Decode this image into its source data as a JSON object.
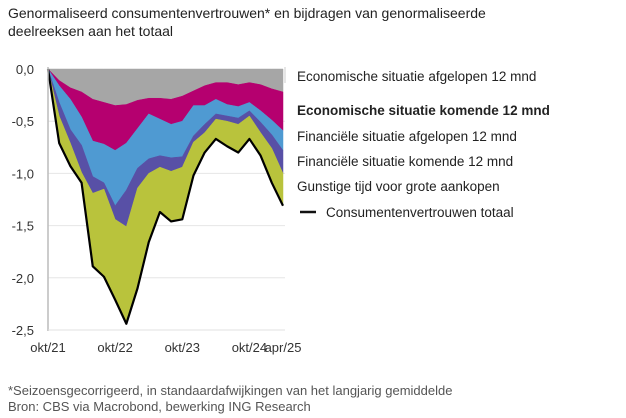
{
  "title": "Genormaliseerd consumentenvertrouwen* en bijdragen van genormaliseerde deelreeksen aan het totaal",
  "footnote": "*Seizoensgecorrigeerd, in standaardafwijkingen van het langjarig gemiddelde",
  "source": "Bron: CBS via Macrobond, bewerking ING Research",
  "chart_data": {
    "type": "area",
    "stacked": true,
    "title": "Genormaliseerd consumentenvertrouwen* en bijdragen van genormaliseerde deelreeksen aan het totaal",
    "xlabel": "",
    "ylabel": "",
    "x_months_since_okt21": [
      0,
      2,
      4,
      6,
      8,
      10,
      12,
      14,
      16,
      18,
      20,
      22,
      24,
      26,
      28,
      30,
      32,
      34,
      36,
      38,
      40,
      42
    ],
    "xticks": [
      {
        "m": 0,
        "label": "okt/21"
      },
      {
        "m": 12,
        "label": "okt/22"
      },
      {
        "m": 24,
        "label": "okt/23"
      },
      {
        "m": 36,
        "label": "okt/24"
      },
      {
        "m": 42,
        "label": "apr/25"
      }
    ],
    "yticks": [
      {
        "v": 0,
        "label": "0,0"
      },
      {
        "v": -0.5,
        "label": "-0,5"
      },
      {
        "v": -1,
        "label": "-1,0"
      },
      {
        "v": -1.5,
        "label": "-1,5"
      },
      {
        "v": -2,
        "label": "-2,0"
      },
      {
        "v": -2.5,
        "label": "-2,5"
      }
    ],
    "ylim": [
      -2.5,
      0
    ],
    "grid": true,
    "series": [
      {
        "name": "Economische situatie afgelopen 12 mnd",
        "color": "#a6a6a6",
        "bold": false,
        "values": [
          0,
          -0.11,
          -0.18,
          -0.22,
          -0.29,
          -0.32,
          -0.35,
          -0.34,
          -0.3,
          -0.28,
          -0.28,
          -0.29,
          -0.26,
          -0.21,
          -0.16,
          -0.13,
          -0.13,
          -0.15,
          -0.13,
          -0.15,
          -0.19,
          -0.22
        ]
      },
      {
        "name": "Economische situatie komende 12 mnd",
        "color": "#b5006f",
        "bold": true,
        "values": [
          0,
          -0.05,
          -0.11,
          -0.24,
          -0.4,
          -0.4,
          -0.43,
          -0.37,
          -0.27,
          -0.15,
          -0.2,
          -0.24,
          -0.24,
          -0.14,
          -0.19,
          -0.16,
          -0.21,
          -0.21,
          -0.19,
          -0.25,
          -0.3,
          -0.37
        ]
      },
      {
        "name": "Financiële situatie afgelopen 12 mnd",
        "color": "#4f9ad2",
        "bold": false,
        "values": [
          0,
          -0.16,
          -0.29,
          -0.27,
          -0.34,
          -0.37,
          -0.53,
          -0.45,
          -0.38,
          -0.43,
          -0.35,
          -0.32,
          -0.34,
          -0.29,
          -0.18,
          -0.14,
          -0.11,
          -0.11,
          -0.08,
          -0.11,
          -0.14,
          -0.19
        ]
      },
      {
        "name": "Financiële situatie komende 12 mnd",
        "color": "#5850a6",
        "bold": false,
        "values": [
          0,
          -0.13,
          -0.13,
          -0.26,
          -0.16,
          -0.06,
          -0.13,
          -0.35,
          -0.19,
          -0.14,
          -0.11,
          -0.13,
          -0.1,
          -0.06,
          -0.08,
          -0.05,
          -0.05,
          -0.06,
          -0.05,
          -0.1,
          -0.13,
          -0.22
        ]
      },
      {
        "name": "Gunstige tijd voor grote aankopen",
        "color": "#b9c33c",
        "bold": false,
        "values": [
          0,
          -0.26,
          -0.22,
          -0.1,
          -0.71,
          -0.83,
          -0.77,
          -0.93,
          -0.96,
          -0.66,
          -0.43,
          -0.48,
          -0.5,
          -0.32,
          -0.19,
          -0.19,
          -0.24,
          -0.26,
          -0.22,
          -0.22,
          -0.32,
          -0.3
        ]
      }
    ],
    "total": {
      "name": "Consumentenvertrouwen totaal",
      "color": "#000000",
      "values": [
        0,
        -0.71,
        -0.93,
        -1.09,
        -1.89,
        -1.99,
        -2.21,
        -2.44,
        -2.1,
        -1.66,
        -1.37,
        -1.46,
        -1.44,
        -1.02,
        -0.8,
        -0.67,
        -0.74,
        -0.8,
        -0.67,
        -0.83,
        -1.09,
        -1.31
      ]
    }
  }
}
